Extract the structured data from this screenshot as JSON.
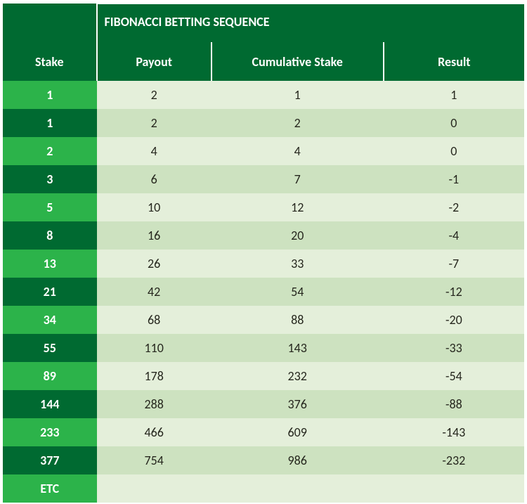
{
  "table": {
    "title": "FIBONACCI BETTING SEQUENCE",
    "columns": {
      "stake": "Stake",
      "payout": "Payout",
      "cumulative": "Cumulative Stake",
      "result": "Result"
    },
    "col_widths_pct": [
      18,
      22,
      33,
      27
    ],
    "final_row_label": "ETC",
    "header_bg": "#006a31",
    "header_fg": "#ffffff",
    "header_borders": {
      "top": "#ffffff",
      "vertical": "#ffffff"
    },
    "stake_col": {
      "row_bg_light": "#2cb34a",
      "row_bg_dark": "#006a31",
      "fg": "#ffffff"
    },
    "body": {
      "row_bg_light": "#e4efda",
      "row_bg_dark": "#cde2c0",
      "fg": "#25261d"
    },
    "font_family": "Calibri, Arial, sans-serif",
    "title_fontsize": 18,
    "header_fontsize": 18,
    "cell_fontsize": 18,
    "rows": [
      {
        "stake": "1",
        "payout": "2",
        "cumulative": "1",
        "result": "1"
      },
      {
        "stake": "1",
        "payout": "2",
        "cumulative": "2",
        "result": "0"
      },
      {
        "stake": "2",
        "payout": "4",
        "cumulative": "4",
        "result": "0"
      },
      {
        "stake": "3",
        "payout": "6",
        "cumulative": "7",
        "result": "-1"
      },
      {
        "stake": "5",
        "payout": "10",
        "cumulative": "12",
        "result": "-2"
      },
      {
        "stake": "8",
        "payout": "16",
        "cumulative": "20",
        "result": "-4"
      },
      {
        "stake": "13",
        "payout": "26",
        "cumulative": "33",
        "result": "-7"
      },
      {
        "stake": "21",
        "payout": "42",
        "cumulative": "54",
        "result": "-12"
      },
      {
        "stake": "34",
        "payout": "68",
        "cumulative": "88",
        "result": "-20"
      },
      {
        "stake": "55",
        "payout": "110",
        "cumulative": "143",
        "result": "-33"
      },
      {
        "stake": "89",
        "payout": "178",
        "cumulative": "232",
        "result": "-54"
      },
      {
        "stake": "144",
        "payout": "288",
        "cumulative": "376",
        "result": "-88"
      },
      {
        "stake": "233",
        "payout": "466",
        "cumulative": "609",
        "result": "-143"
      },
      {
        "stake": "377",
        "payout": "754",
        "cumulative": "986",
        "result": "-232"
      }
    ]
  }
}
